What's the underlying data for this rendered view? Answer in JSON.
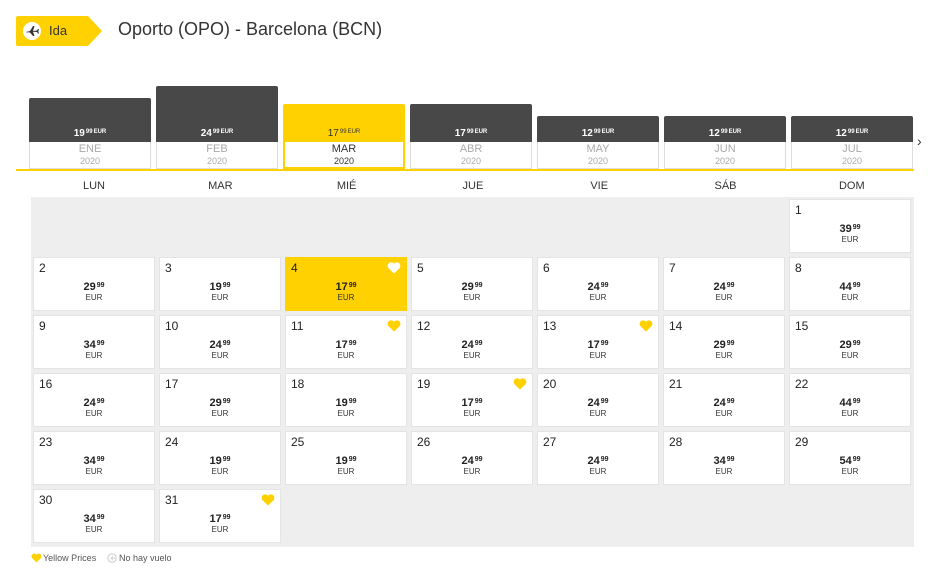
{
  "header": {
    "tag_label": "Ida",
    "tag_icon": "airplane-icon",
    "route_title": "Oporto (OPO) - Barcelona (BCN)"
  },
  "colors": {
    "accent": "#ffd100",
    "bar_dark": "#484848",
    "grid_bg": "#eeeeee"
  },
  "months": [
    {
      "name": "ENE",
      "year": "2020",
      "price_main": "19",
      "price_cents": "99",
      "currency": "EUR",
      "bar_level": 0.55,
      "selected": false
    },
    {
      "name": "FEB",
      "year": "2020",
      "price_main": "24",
      "price_cents": "99",
      "currency": "EUR",
      "bar_level": 0.7,
      "selected": false
    },
    {
      "name": "MAR",
      "year": "2020",
      "price_main": "17",
      "price_cents": "99",
      "currency": "EUR",
      "bar_level": 0.48,
      "selected": true
    },
    {
      "name": "ABR",
      "year": "2020",
      "price_main": "17",
      "price_cents": "99",
      "currency": "EUR",
      "bar_level": 0.48,
      "selected": false
    },
    {
      "name": "MAY",
      "year": "2020",
      "price_main": "12",
      "price_cents": "99",
      "currency": "EUR",
      "bar_level": 0.33,
      "selected": false
    },
    {
      "name": "JUN",
      "year": "2020",
      "price_main": "12",
      "price_cents": "99",
      "currency": "EUR",
      "bar_level": 0.33,
      "selected": false
    },
    {
      "name": "JUL",
      "year": "2020",
      "price_main": "12",
      "price_cents": "99",
      "currency": "EUR",
      "bar_level": 0.33,
      "selected": false
    }
  ],
  "next_arrow": "›",
  "weekdays": [
    "LUN",
    "MAR",
    "MIÉ",
    "JUE",
    "VIE",
    "SÁB",
    "DOM"
  ],
  "currency": "EUR",
  "first_weekday_index": 6,
  "selected_day": 4,
  "days": [
    {
      "day": "1",
      "main": "39",
      "cents": "99",
      "yellow": false
    },
    {
      "day": "2",
      "main": "29",
      "cents": "99",
      "yellow": false
    },
    {
      "day": "3",
      "main": "19",
      "cents": "99",
      "yellow": false
    },
    {
      "day": "4",
      "main": "17",
      "cents": "99",
      "yellow": true
    },
    {
      "day": "5",
      "main": "29",
      "cents": "99",
      "yellow": false
    },
    {
      "day": "6",
      "main": "24",
      "cents": "99",
      "yellow": false
    },
    {
      "day": "7",
      "main": "24",
      "cents": "99",
      "yellow": false
    },
    {
      "day": "8",
      "main": "44",
      "cents": "99",
      "yellow": false
    },
    {
      "day": "9",
      "main": "34",
      "cents": "99",
      "yellow": false
    },
    {
      "day": "10",
      "main": "24",
      "cents": "99",
      "yellow": false
    },
    {
      "day": "11",
      "main": "17",
      "cents": "99",
      "yellow": true
    },
    {
      "day": "12",
      "main": "24",
      "cents": "99",
      "yellow": false
    },
    {
      "day": "13",
      "main": "17",
      "cents": "99",
      "yellow": true
    },
    {
      "day": "14",
      "main": "29",
      "cents": "99",
      "yellow": false
    },
    {
      "day": "15",
      "main": "29",
      "cents": "99",
      "yellow": false
    },
    {
      "day": "16",
      "main": "24",
      "cents": "99",
      "yellow": false
    },
    {
      "day": "17",
      "main": "29",
      "cents": "99",
      "yellow": false
    },
    {
      "day": "18",
      "main": "19",
      "cents": "99",
      "yellow": false
    },
    {
      "day": "19",
      "main": "17",
      "cents": "99",
      "yellow": true
    },
    {
      "day": "20",
      "main": "24",
      "cents": "99",
      "yellow": false
    },
    {
      "day": "21",
      "main": "24",
      "cents": "99",
      "yellow": false
    },
    {
      "day": "22",
      "main": "44",
      "cents": "99",
      "yellow": false
    },
    {
      "day": "23",
      "main": "34",
      "cents": "99",
      "yellow": false
    },
    {
      "day": "24",
      "main": "19",
      "cents": "99",
      "yellow": false
    },
    {
      "day": "25",
      "main": "19",
      "cents": "99",
      "yellow": false
    },
    {
      "day": "26",
      "main": "24",
      "cents": "99",
      "yellow": false
    },
    {
      "day": "27",
      "main": "24",
      "cents": "99",
      "yellow": false
    },
    {
      "day": "28",
      "main": "34",
      "cents": "99",
      "yellow": false
    },
    {
      "day": "29",
      "main": "54",
      "cents": "99",
      "yellow": false
    },
    {
      "day": "30",
      "main": "34",
      "cents": "99",
      "yellow": false
    },
    {
      "day": "31",
      "main": "17",
      "cents": "99",
      "yellow": true
    }
  ],
  "legend": {
    "yellow_prices": "Yellow Prices",
    "yellow_icon": "heart-icon",
    "no_flight": "No hay vuelo",
    "no_flight_icon": "no-flight-icon"
  }
}
